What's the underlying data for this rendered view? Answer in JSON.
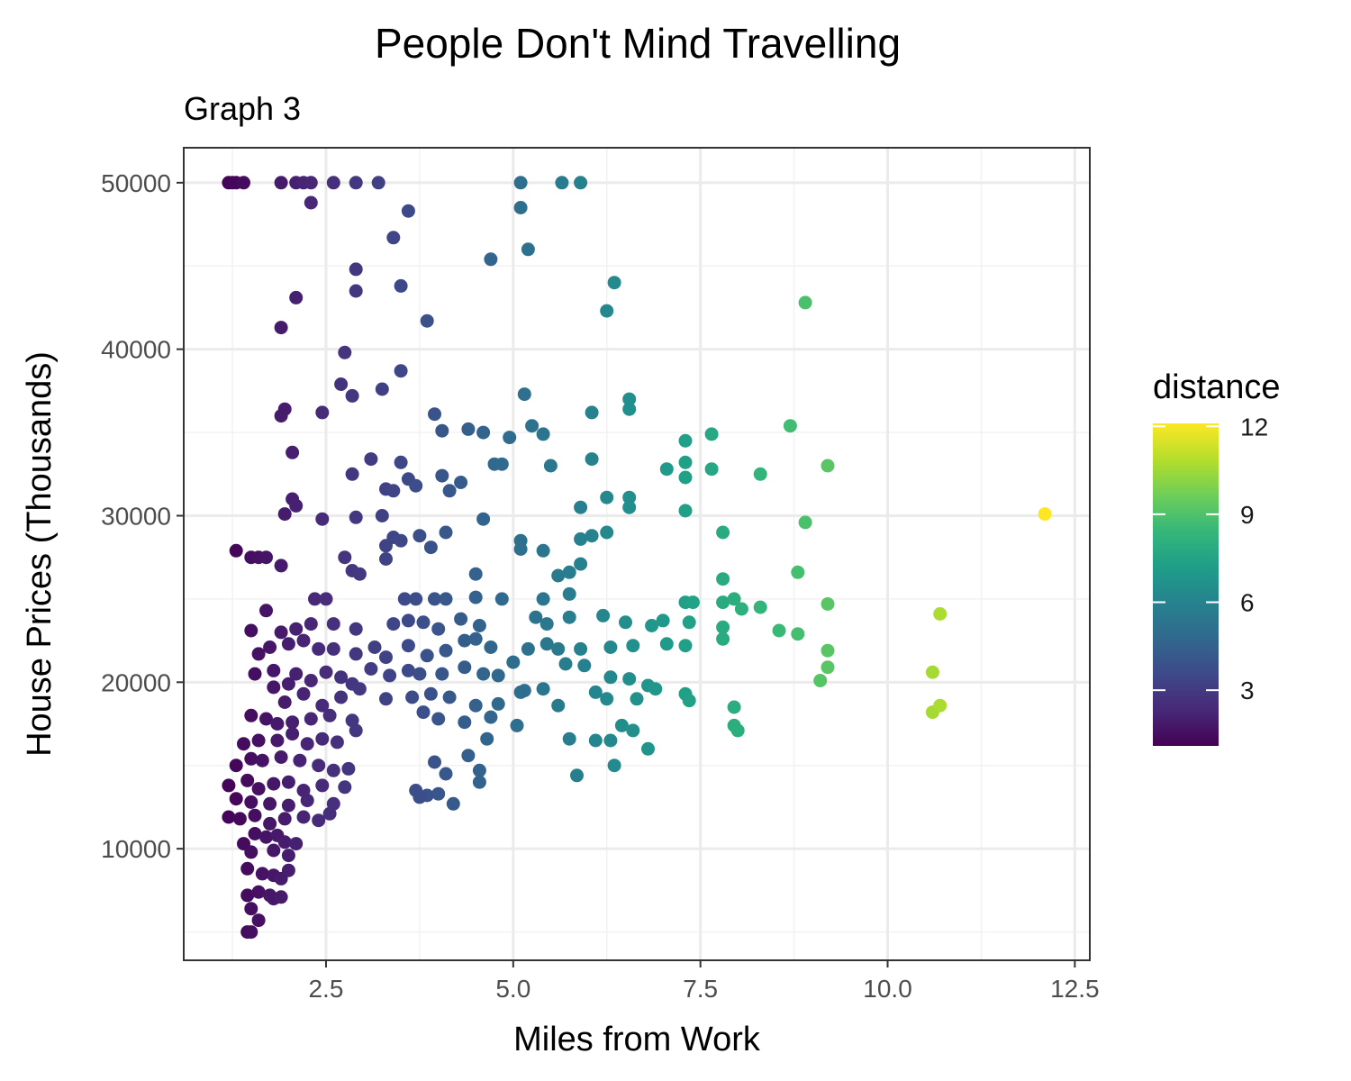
{
  "chart_data": {
    "type": "scatter",
    "title": "People Don't Mind Travelling",
    "subtitle": "Graph 3",
    "xlabel": "Miles from Work",
    "ylabel": "House Prices (Thousands)",
    "xlim": [
      0.6,
      12.7
    ],
    "ylim": [
      3300,
      52100
    ],
    "x_ticks": [
      2.5,
      5.0,
      7.5,
      10.0,
      12.5
    ],
    "x_tick_labels": [
      "2.5",
      "5.0",
      "7.5",
      "10.0",
      "12.5"
    ],
    "y_ticks": [
      10000,
      20000,
      30000,
      40000,
      50000
    ],
    "y_tick_labels": [
      "10000",
      "20000",
      "30000",
      "40000",
      "50000"
    ],
    "grid": true,
    "legend": {
      "title": "distance",
      "position": "right",
      "min": 1.1,
      "max": 12.1,
      "ticks": [
        3,
        6,
        9,
        12
      ],
      "tick_labels": [
        "3",
        "6",
        "9",
        "12"
      ],
      "colormap": [
        "#440154",
        "#482878",
        "#3e4989",
        "#31688e",
        "#26828e",
        "#1f9e89",
        "#35b779",
        "#6ece58",
        "#b5de2b",
        "#fde725"
      ]
    },
    "color_by": "x",
    "points": [
      [
        1.2,
        50000
      ],
      [
        1.25,
        50000
      ],
      [
        1.3,
        50000
      ],
      [
        1.4,
        50000
      ],
      [
        1.9,
        50000
      ],
      [
        2.1,
        50000
      ],
      [
        2.2,
        50000
      ],
      [
        2.3,
        50000
      ],
      [
        2.6,
        50000
      ],
      [
        2.9,
        50000
      ],
      [
        3.2,
        50000
      ],
      [
        5.1,
        50000
      ],
      [
        5.65,
        50000
      ],
      [
        5.9,
        50000
      ],
      [
        2.3,
        48800
      ],
      [
        3.6,
        48300
      ],
      [
        5.1,
        48500
      ],
      [
        3.4,
        46700
      ],
      [
        5.2,
        46000
      ],
      [
        4.7,
        45400
      ],
      [
        2.9,
        44800
      ],
      [
        6.35,
        44000
      ],
      [
        2.9,
        43500
      ],
      [
        3.5,
        43800
      ],
      [
        2.1,
        43100
      ],
      [
        6.25,
        42300
      ],
      [
        8.9,
        42800
      ],
      [
        1.9,
        41300
      ],
      [
        3.85,
        41700
      ],
      [
        2.75,
        39800
      ],
      [
        3.5,
        38700
      ],
      [
        2.7,
        37900
      ],
      [
        2.85,
        37200
      ],
      [
        3.25,
        37600
      ],
      [
        5.15,
        37300
      ],
      [
        6.55,
        37000
      ],
      [
        2.45,
        36200
      ],
      [
        1.95,
        36400
      ],
      [
        1.9,
        36000
      ],
      [
        6.55,
        36400
      ],
      [
        6.05,
        36200
      ],
      [
        3.95,
        36100
      ],
      [
        5.25,
        35400
      ],
      [
        4.05,
        35100
      ],
      [
        4.4,
        35200
      ],
      [
        4.6,
        35000
      ],
      [
        5.4,
        34900
      ],
      [
        4.95,
        34700
      ],
      [
        7.3,
        34500
      ],
      [
        7.65,
        34900
      ],
      [
        8.7,
        35400
      ],
      [
        2.05,
        33800
      ],
      [
        3.1,
        33400
      ],
      [
        3.5,
        33200
      ],
      [
        4.75,
        33100
      ],
      [
        4.85,
        33100
      ],
      [
        5.5,
        33000
      ],
      [
        6.05,
        33400
      ],
      [
        7.05,
        32800
      ],
      [
        7.3,
        33200
      ],
      [
        7.65,
        32800
      ],
      [
        8.3,
        32500
      ],
      [
        9.2,
        33000
      ],
      [
        2.85,
        32500
      ],
      [
        3.6,
        32200
      ],
      [
        4.05,
        32400
      ],
      [
        4.3,
        32000
      ],
      [
        3.3,
        31600
      ],
      [
        3.4,
        31500
      ],
      [
        3.7,
        31800
      ],
      [
        4.15,
        31500
      ],
      [
        6.25,
        31100
      ],
      [
        6.55,
        31100
      ],
      [
        7.3,
        32300
      ],
      [
        6.55,
        30500
      ],
      [
        2.05,
        31000
      ],
      [
        2.1,
        30600
      ],
      [
        1.95,
        30100
      ],
      [
        2.45,
        29800
      ],
      [
        2.9,
        29900
      ],
      [
        3.25,
        30000
      ],
      [
        4.6,
        29800
      ],
      [
        5.9,
        30500
      ],
      [
        7.3,
        30300
      ],
      [
        12.1,
        30100
      ],
      [
        8.9,
        29600
      ],
      [
        3.4,
        28700
      ],
      [
        3.5,
        28500
      ],
      [
        3.3,
        28200
      ],
      [
        3.75,
        28800
      ],
      [
        4.1,
        29000
      ],
      [
        5.1,
        28500
      ],
      [
        5.1,
        28000
      ],
      [
        5.9,
        28600
      ],
      [
        6.05,
        28800
      ],
      [
        6.25,
        29000
      ],
      [
        7.8,
        29000
      ],
      [
        1.3,
        27900
      ],
      [
        1.5,
        27500
      ],
      [
        1.6,
        27500
      ],
      [
        1.7,
        27500
      ],
      [
        1.9,
        27000
      ],
      [
        2.75,
        27500
      ],
      [
        3.3,
        27400
      ],
      [
        3.9,
        28100
      ],
      [
        5.4,
        27900
      ],
      [
        5.6,
        26400
      ],
      [
        5.9,
        27100
      ],
      [
        5.75,
        26600
      ],
      [
        2.85,
        26700
      ],
      [
        2.95,
        26500
      ],
      [
        4.5,
        26500
      ],
      [
        7.8,
        26200
      ],
      [
        8.8,
        26600
      ],
      [
        1.7,
        24300
      ],
      [
        2.35,
        25000
      ],
      [
        2.5,
        25000
      ],
      [
        3.55,
        25000
      ],
      [
        3.7,
        25000
      ],
      [
        3.95,
        25000
      ],
      [
        4.1,
        25000
      ],
      [
        4.5,
        25100
      ],
      [
        4.85,
        25000
      ],
      [
        5.4,
        25000
      ],
      [
        5.75,
        25300
      ],
      [
        7.3,
        24800
      ],
      [
        7.4,
        24800
      ],
      [
        7.8,
        24800
      ],
      [
        7.95,
        25000
      ],
      [
        8.05,
        24400
      ],
      [
        8.3,
        24500
      ],
      [
        9.2,
        24700
      ],
      [
        10.7,
        24100
      ],
      [
        1.5,
        23100
      ],
      [
        1.9,
        23000
      ],
      [
        2.1,
        23200
      ],
      [
        2.3,
        23500
      ],
      [
        2.6,
        23500
      ],
      [
        2.9,
        23200
      ],
      [
        3.4,
        23500
      ],
      [
        3.6,
        23700
      ],
      [
        3.8,
        23600
      ],
      [
        4.0,
        23200
      ],
      [
        4.3,
        23800
      ],
      [
        4.55,
        23400
      ],
      [
        5.3,
        23900
      ],
      [
        5.45,
        23500
      ],
      [
        5.75,
        23900
      ],
      [
        6.2,
        24000
      ],
      [
        6.5,
        23600
      ],
      [
        6.85,
        23400
      ],
      [
        7.0,
        23700
      ],
      [
        7.35,
        23600
      ],
      [
        7.8,
        23300
      ],
      [
        8.55,
        23100
      ],
      [
        8.8,
        22900
      ],
      [
        1.6,
        21700
      ],
      [
        1.75,
        22100
      ],
      [
        2.0,
        22300
      ],
      [
        2.2,
        22500
      ],
      [
        2.4,
        22000
      ],
      [
        2.6,
        22000
      ],
      [
        2.9,
        21700
      ],
      [
        3.15,
        22100
      ],
      [
        3.3,
        21500
      ],
      [
        3.6,
        22200
      ],
      [
        3.85,
        21600
      ],
      [
        4.1,
        21900
      ],
      [
        4.35,
        22500
      ],
      [
        4.5,
        22600
      ],
      [
        4.7,
        22100
      ],
      [
        5.0,
        21200
      ],
      [
        5.2,
        22000
      ],
      [
        5.45,
        22300
      ],
      [
        5.6,
        22000
      ],
      [
        5.9,
        22000
      ],
      [
        6.3,
        22100
      ],
      [
        6.6,
        22200
      ],
      [
        7.05,
        22300
      ],
      [
        7.3,
        22200
      ],
      [
        7.8,
        22600
      ],
      [
        9.2,
        21900
      ],
      [
        1.55,
        20500
      ],
      [
        1.8,
        20700
      ],
      [
        2.0,
        19900
      ],
      [
        2.1,
        20500
      ],
      [
        2.3,
        20100
      ],
      [
        2.5,
        20600
      ],
      [
        2.7,
        20300
      ],
      [
        2.85,
        19900
      ],
      [
        3.1,
        20800
      ],
      [
        3.35,
        20400
      ],
      [
        3.6,
        20700
      ],
      [
        3.75,
        20500
      ],
      [
        4.05,
        20500
      ],
      [
        4.35,
        20900
      ],
      [
        4.6,
        20500
      ],
      [
        4.8,
        20400
      ],
      [
        5.15,
        19500
      ],
      [
        5.4,
        19600
      ],
      [
        5.7,
        21100
      ],
      [
        5.95,
        21000
      ],
      [
        6.1,
        19400
      ],
      [
        6.3,
        20300
      ],
      [
        6.55,
        20200
      ],
      [
        6.8,
        19800
      ],
      [
        7.3,
        19300
      ],
      [
        9.1,
        20100
      ],
      [
        9.2,
        20900
      ],
      [
        10.6,
        20600
      ],
      [
        1.8,
        19700
      ],
      [
        1.95,
        18800
      ],
      [
        2.2,
        19300
      ],
      [
        2.45,
        18600
      ],
      [
        2.7,
        19100
      ],
      [
        2.95,
        19600
      ],
      [
        3.3,
        19000
      ],
      [
        3.65,
        19100
      ],
      [
        3.9,
        19300
      ],
      [
        4.15,
        19100
      ],
      [
        4.5,
        18600
      ],
      [
        4.8,
        18700
      ],
      [
        5.1,
        19400
      ],
      [
        5.6,
        18600
      ],
      [
        6.25,
        19000
      ],
      [
        6.65,
        19000
      ],
      [
        6.9,
        19600
      ],
      [
        7.35,
        18900
      ],
      [
        7.95,
        18500
      ],
      [
        10.6,
        18200
      ],
      [
        10.7,
        18600
      ],
      [
        1.5,
        18000
      ],
      [
        1.7,
        17800
      ],
      [
        1.85,
        17500
      ],
      [
        2.05,
        17600
      ],
      [
        2.3,
        17800
      ],
      [
        2.55,
        18000
      ],
      [
        2.85,
        17700
      ],
      [
        3.8,
        18200
      ],
      [
        4.0,
        17800
      ],
      [
        4.35,
        17600
      ],
      [
        4.7,
        17900
      ],
      [
        5.05,
        17400
      ],
      [
        6.45,
        17400
      ],
      [
        6.6,
        17100
      ],
      [
        7.95,
        17400
      ],
      [
        8.0,
        17100
      ],
      [
        1.4,
        16300
      ],
      [
        1.6,
        16500
      ],
      [
        1.85,
        16500
      ],
      [
        2.05,
        16900
      ],
      [
        2.25,
        16300
      ],
      [
        2.45,
        16600
      ],
      [
        2.65,
        16400
      ],
      [
        2.9,
        17100
      ],
      [
        4.65,
        16600
      ],
      [
        5.75,
        16600
      ],
      [
        6.1,
        16500
      ],
      [
        6.3,
        16500
      ],
      [
        6.8,
        16000
      ],
      [
        1.3,
        15000
      ],
      [
        1.5,
        15400
      ],
      [
        1.65,
        15300
      ],
      [
        1.9,
        15500
      ],
      [
        2.15,
        15300
      ],
      [
        2.4,
        15000
      ],
      [
        2.6,
        14700
      ],
      [
        2.8,
        14800
      ],
      [
        3.95,
        15200
      ],
      [
        4.4,
        15600
      ],
      [
        4.55,
        14700
      ],
      [
        5.85,
        14400
      ],
      [
        6.35,
        15000
      ],
      [
        1.2,
        13800
      ],
      [
        1.45,
        14100
      ],
      [
        1.6,
        13600
      ],
      [
        1.8,
        13900
      ],
      [
        2.0,
        14000
      ],
      [
        2.2,
        13500
      ],
      [
        2.45,
        13800
      ],
      [
        2.75,
        13700
      ],
      [
        3.7,
        13500
      ],
      [
        3.85,
        13200
      ],
      [
        4.0,
        13300
      ],
      [
        4.1,
        14500
      ],
      [
        4.55,
        14000
      ],
      [
        1.3,
        13000
      ],
      [
        1.5,
        12800
      ],
      [
        1.75,
        12700
      ],
      [
        2.0,
        12600
      ],
      [
        2.25,
        12900
      ],
      [
        2.6,
        12700
      ],
      [
        3.75,
        13100
      ],
      [
        4.2,
        12700
      ],
      [
        1.2,
        11900
      ],
      [
        1.35,
        11800
      ],
      [
        1.55,
        12000
      ],
      [
        1.75,
        11500
      ],
      [
        1.95,
        11800
      ],
      [
        2.2,
        11900
      ],
      [
        2.4,
        11700
      ],
      [
        2.55,
        12100
      ],
      [
        1.4,
        10300
      ],
      [
        1.55,
        10900
      ],
      [
        1.7,
        10700
      ],
      [
        1.85,
        10800
      ],
      [
        1.95,
        10400
      ],
      [
        2.1,
        10300
      ],
      [
        1.5,
        9800
      ],
      [
        1.8,
        9900
      ],
      [
        2.0,
        9600
      ],
      [
        1.45,
        8800
      ],
      [
        1.65,
        8500
      ],
      [
        1.8,
        8400
      ],
      [
        1.9,
        8200
      ],
      [
        2.0,
        8700
      ],
      [
        1.45,
        7200
      ],
      [
        1.6,
        7400
      ],
      [
        1.75,
        7200
      ],
      [
        1.8,
        7000
      ],
      [
        1.9,
        7100
      ],
      [
        1.5,
        6400
      ],
      [
        1.6,
        5700
      ],
      [
        1.45,
        5000
      ],
      [
        1.5,
        5000
      ]
    ]
  }
}
